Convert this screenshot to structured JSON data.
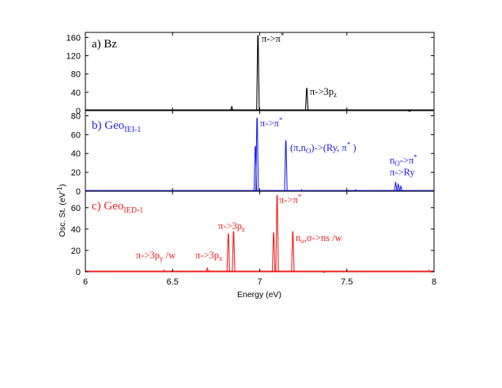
{
  "chart_data": [
    {
      "type": "line",
      "panel_label": "a) Bz",
      "color": "#000000",
      "xlim": [
        6,
        8
      ],
      "ylim": [
        0,
        170
      ],
      "yticks": [
        "0",
        "40",
        "80",
        "120",
        "160"
      ],
      "ytick_values": [
        0,
        40,
        80,
        120,
        160
      ],
      "peaks": [
        {
          "x": 6.84,
          "y": 10
        },
        {
          "x": 6.99,
          "y": 165
        },
        {
          "x": 7.27,
          "y": 50
        },
        {
          "x": 7.86,
          "y": 2
        }
      ],
      "annotations": [
        "π->π*",
        "π->3pz"
      ]
    },
    {
      "type": "line",
      "panel_label": "b) GeoIEI-1",
      "color": "#2020ee",
      "xlim": [
        6,
        8
      ],
      "ylim": [
        0,
        85
      ],
      "yticks": [
        "0",
        "20",
        "40",
        "60",
        "80"
      ],
      "ytick_values": [
        0,
        20,
        40,
        60,
        80
      ],
      "peaks": [
        {
          "x": 6.975,
          "y": 48
        },
        {
          "x": 6.985,
          "y": 78
        },
        {
          "x": 7.15,
          "y": 54
        },
        {
          "x": 7.24,
          "y": 2
        },
        {
          "x": 7.55,
          "y": 2
        },
        {
          "x": 7.78,
          "y": 10
        },
        {
          "x": 7.795,
          "y": 8
        },
        {
          "x": 7.81,
          "y": 6
        }
      ],
      "annotations": [
        "π->π*",
        "(π,nO)->(Ry, π* )",
        "nO->π*",
        "π->Ry"
      ]
    },
    {
      "type": "line",
      "panel_label": "c) GeoIED-1",
      "color": "#ee2020",
      "xlim": [
        6,
        8
      ],
      "ylim": [
        0,
        75
      ],
      "yticks": [
        "0",
        "20",
        "40",
        "60"
      ],
      "ytick_values": [
        0,
        20,
        40,
        60
      ],
      "peaks": [
        {
          "x": 6.45,
          "y": 2
        },
        {
          "x": 6.7,
          "y": 4
        },
        {
          "x": 6.82,
          "y": 36
        },
        {
          "x": 6.85,
          "y": 38
        },
        {
          "x": 7.08,
          "y": 37
        },
        {
          "x": 7.1,
          "y": 72
        },
        {
          "x": 7.19,
          "y": 38
        },
        {
          "x": 7.37,
          "y": 1
        },
        {
          "x": 7.97,
          "y": 2
        }
      ],
      "annotations": [
        "π->π*",
        "π->3pz",
        "π->3py /w",
        "π->3px",
        "no,σ->ns /w"
      ]
    }
  ],
  "xaxis": {
    "label": "Energy (eV)",
    "ticks": [
      "6",
      "6.5",
      "7",
      "7.5",
      "8"
    ],
    "tick_values": [
      6,
      6.5,
      7,
      7.5,
      8
    ]
  },
  "yaxis": {
    "label": "Osc. St. (eV-1)"
  },
  "text": {
    "a_label_base": "a) Bz",
    "b_label_prefix": "b) Geo",
    "b_label_sub": "IEI-1",
    "c_label_prefix": "c) Geo",
    "c_label_sub": "IED-1",
    "a_pipi_main": "π->π",
    "a_pipi_sup": "*",
    "a_3pz_main": "π->3p",
    "a_3pz_sub": "z",
    "b_pipi_main": "π->π",
    "b_pipi_sup": "*",
    "b_ry_1": "(π,n",
    "b_ry_sub": "O",
    "b_ry_2": ")->(Ry, π",
    "b_ry_sup": "*",
    "b_ry_3": " )",
    "b_no_main": "n",
    "b_no_sub": "O",
    "b_no_2": "->π",
    "b_no_sup": "*",
    "b_piry": "π->Ry",
    "c_pipi_main": "π->π",
    "c_pipi_sup": "*",
    "c_3pz_main": "π->3p",
    "c_3pz_sub": "z",
    "c_3py_main": "π->3p",
    "c_3py_sub": "y",
    "c_3py_end": " /w",
    "c_3px_main": "π->3p",
    "c_3px_sub": "x",
    "c_no_main": "n",
    "c_no_sub": "o",
    "c_no_end": ",σ->ns /w",
    "ylabel_main": "Osc. St. (eV",
    "ylabel_sup": "-1",
    "ylabel_end": ")"
  }
}
